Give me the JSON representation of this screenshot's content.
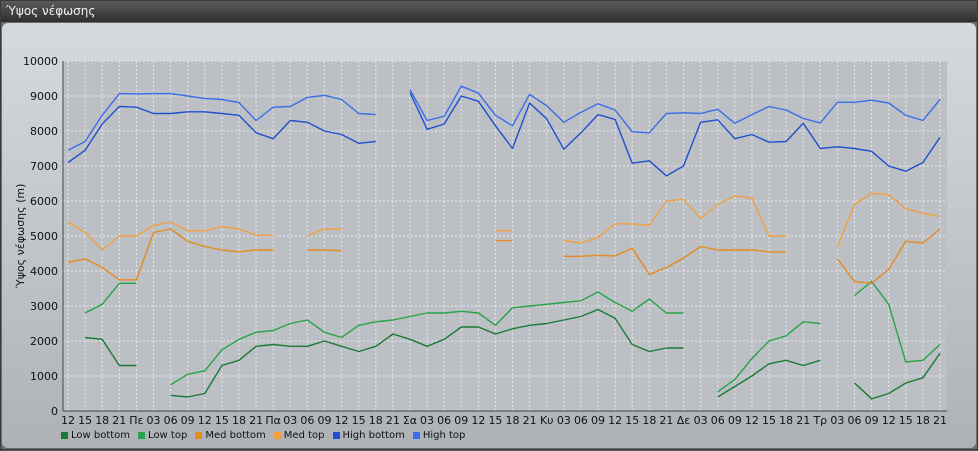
{
  "window": {
    "title": "Ύψος νέφωσης"
  },
  "chart_data": {
    "type": "line",
    "ylabel": "Ύψος νέφωσης (m)",
    "ylim": [
      0,
      10000
    ],
    "yticks": [
      0,
      1000,
      2000,
      3000,
      4000,
      5000,
      6000,
      7000,
      8000,
      9000,
      10000
    ],
    "grid": true,
    "legend_position": "bottom-left",
    "categories": [
      "12",
      "15",
      "18",
      "21",
      "Πε",
      "03",
      "06",
      "09",
      "12",
      "15",
      "18",
      "21",
      "Πα",
      "03",
      "06",
      "09",
      "12",
      "15",
      "18",
      "21",
      "Σα",
      "03",
      "06",
      "09",
      "12",
      "15",
      "18",
      "21",
      "Κυ",
      "03",
      "06",
      "09",
      "12",
      "15",
      "18",
      "21",
      "Δε",
      "03",
      "06",
      "09",
      "12",
      "15",
      "18",
      "21",
      "Τρ",
      "03",
      "06",
      "09",
      "12",
      "15",
      "18",
      "21"
    ],
    "series": [
      {
        "name": "Low bottom",
        "color": "#1a7a35",
        "values": [
          null,
          2100,
          2050,
          1300,
          1300,
          null,
          450,
          400,
          500,
          1300,
          1450,
          1850,
          1900,
          1850,
          1850,
          2000,
          1850,
          1700,
          1850,
          2200,
          2050,
          1850,
          2050,
          2400,
          2400,
          2200,
          2350,
          2450,
          2500,
          2600,
          2700,
          2900,
          2650,
          1900,
          1700,
          1800,
          1800,
          null,
          400,
          700,
          1000,
          1350,
          1450,
          1300,
          1450,
          null,
          800,
          350,
          500,
          800,
          950,
          1650
        ]
      },
      {
        "name": "Low top",
        "color": "#27a349",
        "values": [
          null,
          2800,
          3050,
          3650,
          3650,
          null,
          750,
          1050,
          1150,
          1750,
          2050,
          2250,
          2300,
          2500,
          2600,
          2250,
          2100,
          2450,
          2550,
          2600,
          2700,
          2800,
          2800,
          2850,
          2800,
          2450,
          2950,
          3000,
          3050,
          3100,
          3150,
          3400,
          3100,
          2850,
          3200,
          2800,
          2800,
          null,
          550,
          900,
          1500,
          2000,
          2150,
          2550,
          2500,
          null,
          3300,
          3700,
          3050,
          1400,
          1450,
          1900
        ]
      },
      {
        "name": "Med bottom",
        "color": "#e58a1e",
        "values": [
          4250,
          4350,
          4100,
          3750,
          3750,
          5100,
          5200,
          4850,
          4700,
          4600,
          4550,
          4600,
          4600,
          null,
          4600,
          4600,
          4580,
          null,
          null,
          null,
          null,
          null,
          null,
          null,
          null,
          4870,
          4870,
          null,
          null,
          4420,
          4420,
          4450,
          4430,
          4650,
          3900,
          4100,
          4370,
          4700,
          4600,
          4600,
          4600,
          4550,
          4540,
          null,
          null,
          4350,
          3700,
          3650,
          4050,
          4850,
          4800,
          5200
        ]
      },
      {
        "name": "Med top",
        "color": "#f0a040",
        "values": [
          5400,
          5100,
          4600,
          5000,
          5000,
          5300,
          5400,
          5150,
          5150,
          5270,
          5200,
          5020,
          5020,
          null,
          5000,
          5200,
          5200,
          null,
          null,
          null,
          null,
          null,
          null,
          null,
          null,
          5150,
          5150,
          null,
          null,
          4870,
          4800,
          4960,
          5350,
          5350,
          5300,
          6000,
          6050,
          5500,
          5900,
          6150,
          6080,
          5000,
          5000,
          null,
          null,
          4700,
          5900,
          6220,
          6180,
          5780,
          5650,
          5560
        ]
      },
      {
        "name": "High bottom",
        "color": "#1f4fcf",
        "values": [
          7100,
          7450,
          8200,
          8700,
          8680,
          8500,
          8500,
          8550,
          8550,
          8500,
          8450,
          7950,
          7780,
          8300,
          8250,
          8000,
          7900,
          7650,
          7700,
          null,
          9100,
          8050,
          8200,
          9000,
          8850,
          8150,
          7500,
          8800,
          8350,
          7480,
          7950,
          8470,
          8330,
          7080,
          7150,
          6720,
          7000,
          8250,
          8320,
          7780,
          7900,
          7680,
          7700,
          8220,
          7500,
          7550,
          7500,
          7420,
          7000,
          6850,
          7100,
          7820
        ]
      },
      {
        "name": "High top",
        "color": "#3a6ee8",
        "values": [
          7450,
          7700,
          8450,
          9070,
          9060,
          9070,
          9070,
          9000,
          8930,
          8900,
          8810,
          8300,
          8680,
          8700,
          8960,
          9020,
          8900,
          8500,
          8470,
          null,
          9180,
          8300,
          8420,
          9280,
          9080,
          8450,
          8150,
          9050,
          8720,
          8250,
          8530,
          8780,
          8600,
          7980,
          7950,
          8500,
          8520,
          8500,
          8620,
          8220,
          8470,
          8700,
          8600,
          8360,
          8230,
          8820,
          8820,
          8880,
          8800,
          8450,
          8300,
          8900
        ]
      }
    ]
  }
}
